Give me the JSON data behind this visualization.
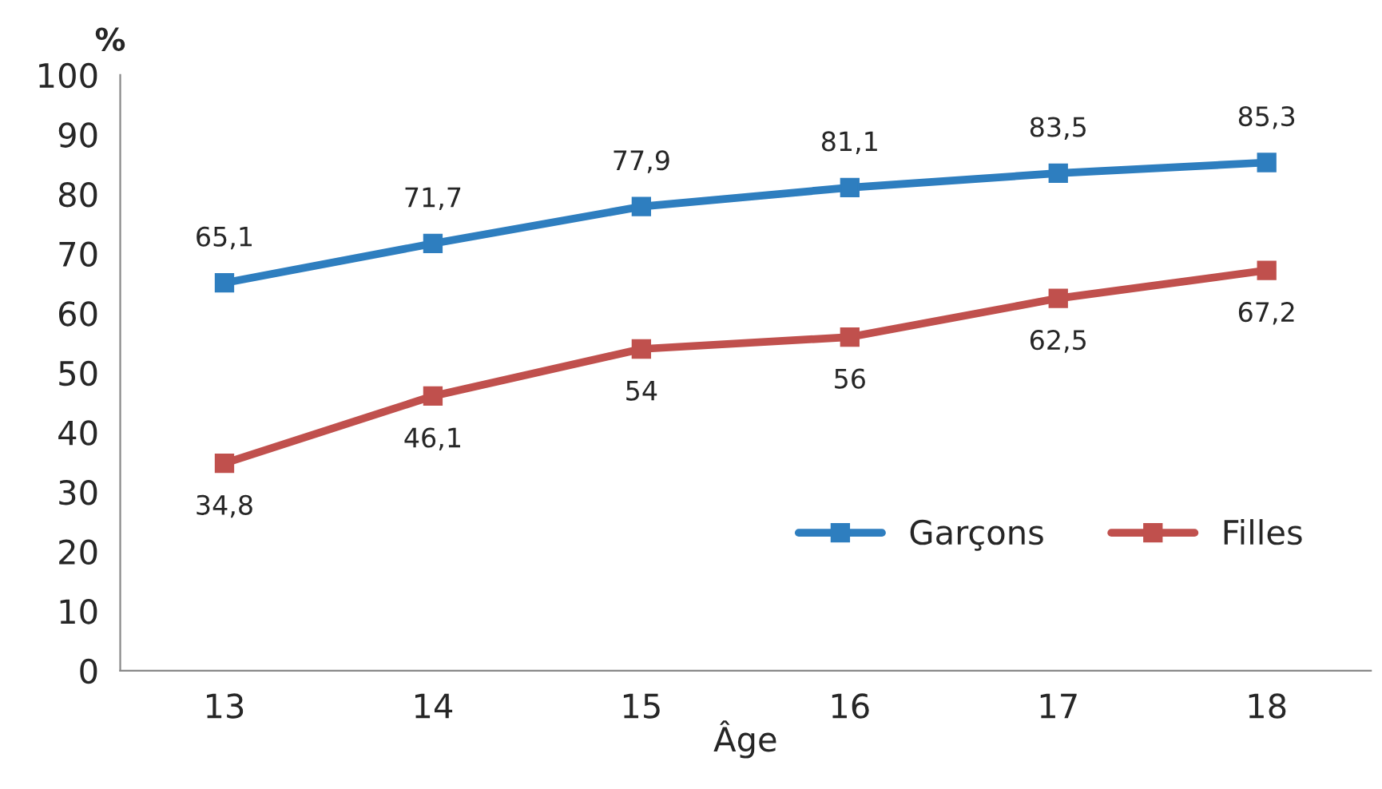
{
  "chart_data": {
    "type": "line",
    "xlabel": "Âge",
    "ylabel": "%",
    "categories": [
      "13",
      "14",
      "15",
      "16",
      "17",
      "18"
    ],
    "series": [
      {
        "name": "Garçons",
        "color": "#2e7ebf",
        "values": [
          65.1,
          71.7,
          77.9,
          81.1,
          83.5,
          85.3
        ],
        "value_labels": [
          "65,1",
          "71,7",
          "77,9",
          "81,1",
          "83,5",
          "85,3"
        ]
      },
      {
        "name": "Filles",
        "color": "#c0504d",
        "values": [
          34.8,
          46.1,
          54,
          56,
          62.5,
          67.2
        ],
        "value_labels": [
          "34,8",
          "46,1",
          "54",
          "56",
          "62,5",
          "67,2"
        ]
      }
    ],
    "ylim": [
      0,
      100
    ],
    "yticks": [
      0,
      10,
      20,
      30,
      40,
      50,
      60,
      70,
      80,
      90,
      100
    ],
    "grid": false,
    "legend": "bottom right",
    "marker": "square",
    "line_style": "solid"
  }
}
